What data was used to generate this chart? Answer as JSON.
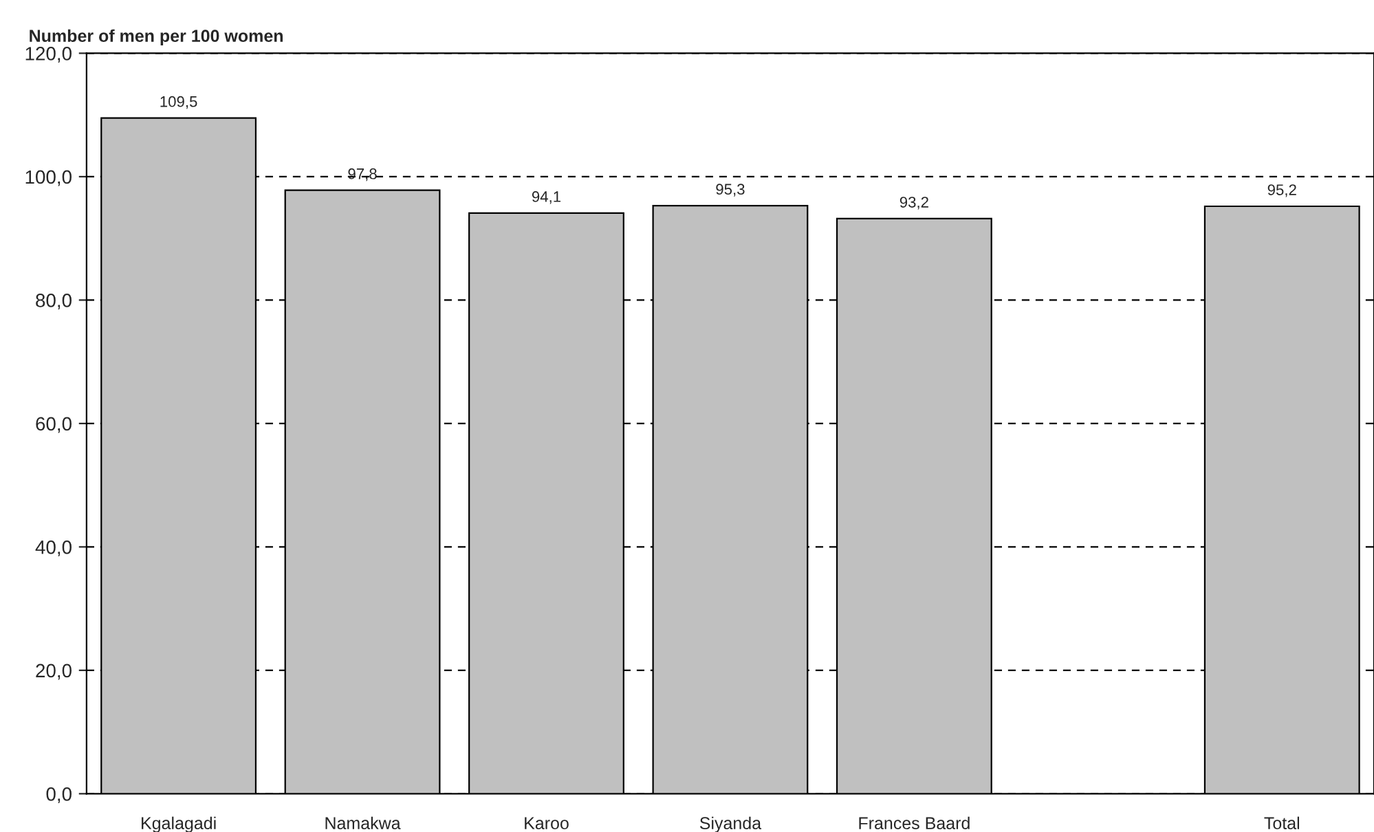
{
  "chart_data": {
    "type": "bar",
    "title": "Number of men per 100 women",
    "categories": [
      "Kgalagadi",
      "Namakwa",
      "Karoo",
      "Siyanda",
      "Frances Baard",
      null,
      "Total"
    ],
    "values": [
      109.5,
      97.8,
      94.1,
      95.3,
      93.2,
      null,
      95.2
    ],
    "value_labels": [
      "109,5",
      "97,8",
      "94,1",
      "95,3",
      "93,2",
      null,
      "95,2"
    ],
    "color": "#c0c0c0",
    "ylim": [
      0,
      120
    ],
    "yticks": [
      {
        "value": 0,
        "label": "0,0"
      },
      {
        "value": 20,
        "label": "20,0"
      },
      {
        "value": 40,
        "label": "40,0"
      },
      {
        "value": 60,
        "label": "60,0"
      },
      {
        "value": 80,
        "label": "80,0"
      },
      {
        "value": 100,
        "label": "100,0"
      },
      {
        "value": 120,
        "label": "120,0"
      }
    ],
    "grid": "y",
    "line_style": "dashed",
    "legend": false
  }
}
